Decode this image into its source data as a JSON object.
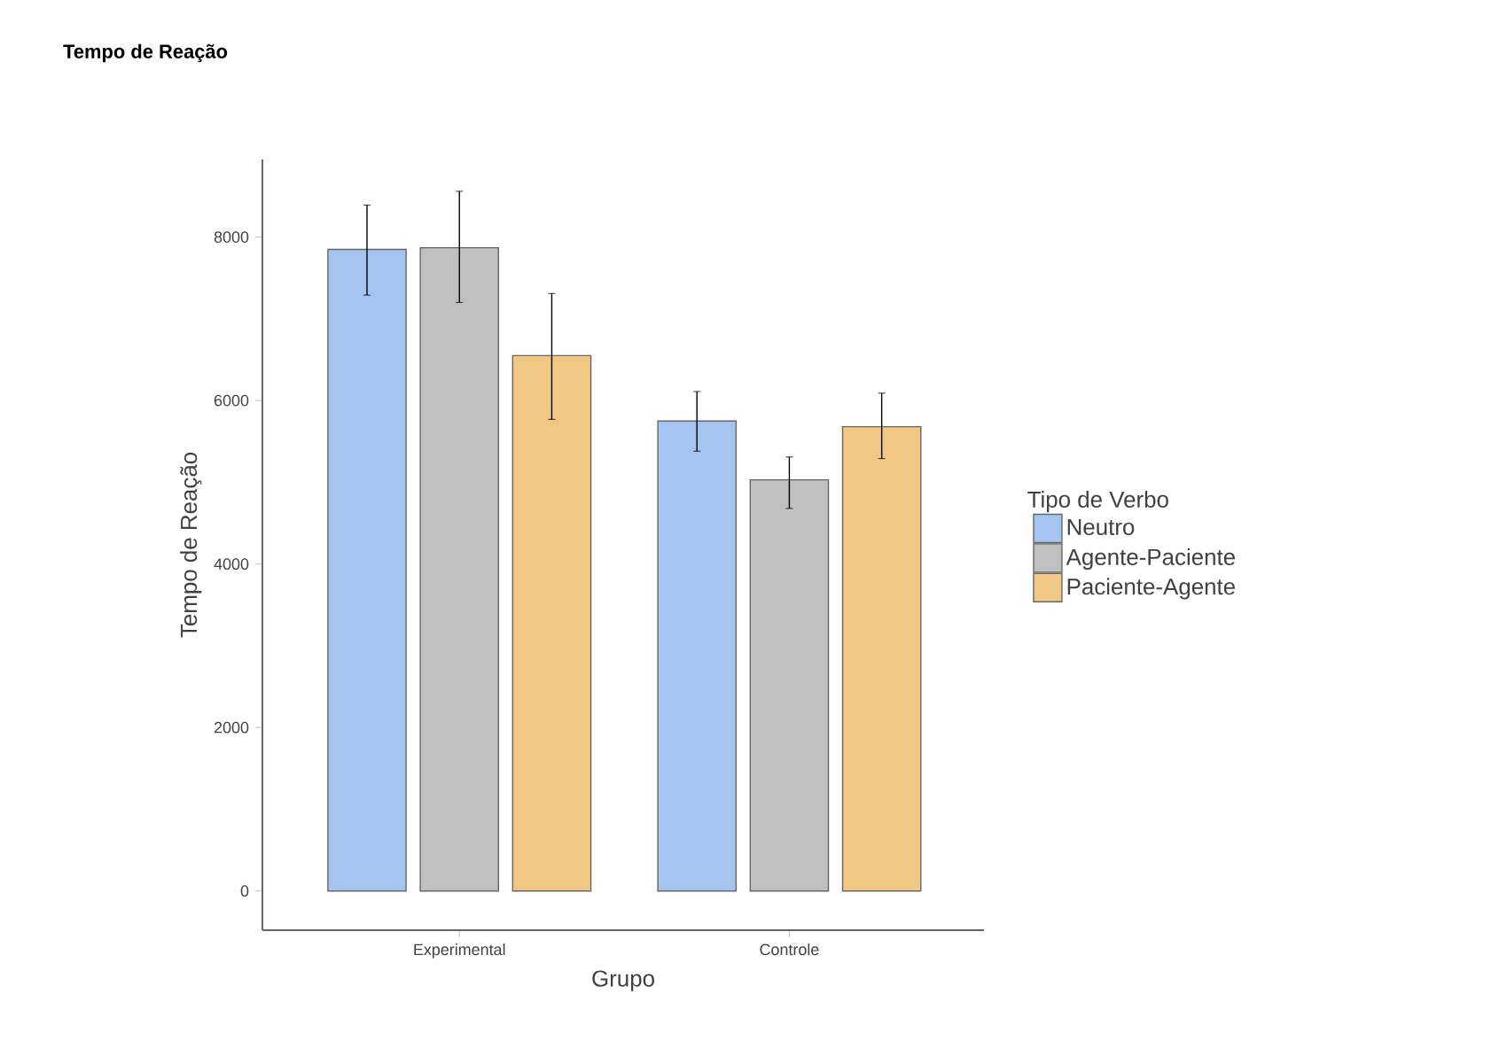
{
  "chart_data": {
    "type": "bar",
    "title": "Tempo de Reação",
    "xlabel": "Grupo",
    "ylabel": "Tempo de Reação",
    "legend_title": "Tipo de Verbo",
    "legend": "right",
    "grid": false,
    "categories": [
      "Experimental",
      "Controle"
    ],
    "ylim": [
      -480,
      8950
    ],
    "yticks": [
      0,
      2000,
      4000,
      6000,
      8000
    ],
    "series": [
      {
        "name": "Neutro",
        "color": "#a6c4f0",
        "values": [
          7850,
          5750
        ],
        "errors": [
          [
            7290,
            8390
          ],
          [
            5380,
            6110
          ]
        ]
      },
      {
        "name": "Agente-Paciente",
        "color": "#c0c0c0",
        "values": [
          7870,
          5030
        ],
        "errors": [
          [
            7200,
            8560
          ],
          [
            4680,
            5310
          ]
        ]
      },
      {
        "name": "Paciente-Agente",
        "color": "#f0c884",
        "values": [
          6550,
          5680
        ],
        "errors": [
          [
            5770,
            7310
          ],
          [
            5290,
            6090
          ]
        ]
      }
    ]
  }
}
